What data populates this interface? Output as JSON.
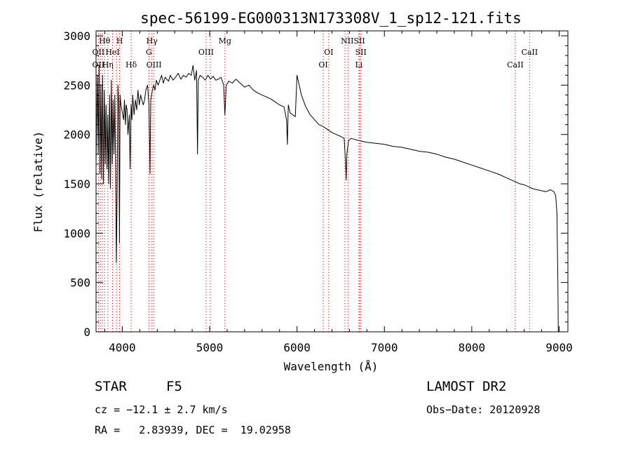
{
  "chart_data": {
    "type": "line",
    "title": "spec-56199-EG000313N173308V_1_sp12-121.fits",
    "xlabel": "Wavelength (Å)",
    "ylabel": "Flux (relative)",
    "xlim": [
      3700,
      9100
    ],
    "ylim": [
      0,
      3050
    ],
    "xticks": [
      4000,
      5000,
      6000,
      7000,
      8000,
      9000
    ],
    "yticks": [
      0,
      500,
      1000,
      1500,
      2000,
      2500,
      3000
    ],
    "grid": false,
    "line_color": "#000000",
    "marker_color": "#cc0000",
    "series": [
      {
        "x": [
          3700,
          3715,
          3725,
          3735,
          3745,
          3755,
          3765,
          3775,
          3785,
          3795,
          3805,
          3815,
          3825,
          3835,
          3845,
          3855,
          3865,
          3875,
          3885,
          3895,
          3905,
          3915,
          3925,
          3933,
          3940,
          3950,
          3960,
          3968,
          3975,
          3985,
          3995,
          4005,
          4015,
          4025,
          4035,
          4045,
          4055,
          4065,
          4080,
          4090,
          4101,
          4110,
          4120,
          4135,
          4150,
          4165,
          4180,
          4195,
          4210,
          4225,
          4240,
          4255,
          4270,
          4290,
          4305,
          4318,
          4325,
          4335,
          4345,
          4360,
          4375,
          4390,
          4410,
          4430,
          4450,
          4470,
          4490,
          4510,
          4530,
          4550,
          4580,
          4610,
          4640,
          4670,
          4700,
          4730,
          4760,
          4790,
          4810,
          4830,
          4850,
          4861,
          4870,
          4890,
          4920,
          4950,
          4980,
          5010,
          5040,
          5070,
          5100,
          5130,
          5160,
          5175,
          5190,
          5220,
          5260,
          5300,
          5350,
          5400,
          5450,
          5500,
          5550,
          5600,
          5650,
          5700,
          5750,
          5800,
          5850,
          5880,
          5890,
          5900,
          5920,
          5950,
          5980,
          6000,
          6050,
          6100,
          6150,
          6200,
          6250,
          6300,
          6350,
          6400,
          6450,
          6500,
          6540,
          6555,
          6563,
          6570,
          6590,
          6620,
          6660,
          6700,
          6750,
          6800,
          6900,
          7000,
          7100,
          7200,
          7300,
          7400,
          7500,
          7600,
          7700,
          7800,
          7900,
          8000,
          8100,
          8200,
          8300,
          8400,
          8450,
          8500,
          8550,
          8600,
          8650,
          8700,
          8750,
          8800,
          8850,
          8900,
          8940,
          8960,
          8975,
          8985,
          8990
        ],
        "y": [
          1700,
          2600,
          1800,
          2700,
          1600,
          2500,
          1550,
          2600,
          1500,
          2450,
          1700,
          2300,
          1650,
          2200,
          1500,
          2400,
          1450,
          2550,
          1700,
          2350,
          1800,
          2400,
          1600,
          700,
          1300,
          2500,
          2300,
          900,
          2400,
          2300,
          2250,
          2200,
          2150,
          2350,
          2100,
          2300,
          2250,
          2000,
          2200,
          1650,
          2300,
          2150,
          2400,
          2200,
          2350,
          2250,
          2450,
          2300,
          2400,
          2350,
          2300,
          2350,
          2450,
          2500,
          2300,
          1600,
          2350,
          2400,
          2450,
          2500,
          2450,
          2550,
          2500,
          2550,
          2600,
          2520,
          2580,
          2560,
          2540,
          2600,
          2550,
          2580,
          2620,
          2560,
          2600,
          2580,
          2620,
          2600,
          2700,
          2550,
          2650,
          1800,
          2550,
          2600,
          2580,
          2550,
          2600,
          2560,
          2590,
          2550,
          2560,
          2580,
          2500,
          2200,
          2500,
          2540,
          2520,
          2560,
          2520,
          2480,
          2500,
          2450,
          2420,
          2400,
          2380,
          2360,
          2330,
          2300,
          2280,
          2150,
          1900,
          2300,
          2220,
          2200,
          2180,
          2600,
          2400,
          2280,
          2200,
          2150,
          2100,
          2080,
          2050,
          2020,
          2000,
          1980,
          1960,
          1720,
          1540,
          1800,
          1940,
          1960,
          1950,
          1940,
          1930,
          1920,
          1910,
          1900,
          1880,
          1870,
          1850,
          1830,
          1820,
          1800,
          1770,
          1750,
          1720,
          1690,
          1660,
          1630,
          1600,
          1560,
          1540,
          1520,
          1500,
          1490,
          1470,
          1450,
          1440,
          1430,
          1420,
          1440,
          1420,
          1380,
          1200,
          500,
          0
        ]
      }
    ],
    "lines": [
      {
        "label": "Hθ",
        "wavelength": 3798,
        "row": 0,
        "side": "top"
      },
      {
        "label": "H",
        "wavelength": 3970,
        "row": 0,
        "side": "top"
      },
      {
        "label": "Hγ",
        "wavelength": 4340,
        "row": 0,
        "side": "top"
      },
      {
        "label": "Mg",
        "wavelength": 5175,
        "row": 0,
        "side": "top"
      },
      {
        "label": "NIISII",
        "wavelength": 6640,
        "row": 0,
        "side": "top"
      },
      {
        "label": "OII",
        "wavelength": 3727,
        "row": 1,
        "side": "top"
      },
      {
        "label": "HeI",
        "wavelength": 3889,
        "row": 1,
        "side": "top"
      },
      {
        "label": "G",
        "wavelength": 4305,
        "row": 1,
        "side": "top"
      },
      {
        "label": "OIII",
        "wavelength": 4959,
        "row": 1,
        "side": "top"
      },
      {
        "label": "OI",
        "wavelength": 6363,
        "row": 1,
        "side": "top"
      },
      {
        "label": "SII",
        "wavelength": 6731,
        "row": 1,
        "side": "top"
      },
      {
        "label": "CaII",
        "wavelength": 8662,
        "row": 1,
        "side": "top"
      },
      {
        "label": "OII",
        "wavelength": 3727,
        "row": 2,
        "side": "bottom"
      },
      {
        "label": "Hη",
        "wavelength": 3835,
        "row": 2,
        "side": "bottom"
      },
      {
        "label": "Hδ",
        "wavelength": 4102,
        "row": 2,
        "side": "bottom"
      },
      {
        "label": "OIII",
        "wavelength": 4363,
        "row": 2,
        "side": "bottom"
      },
      {
        "label": "OI",
        "wavelength": 6300,
        "row": 2,
        "side": "bottom"
      },
      {
        "label": "Li",
        "wavelength": 6708,
        "row": 2,
        "side": "bottom"
      },
      {
        "label": "CaII",
        "wavelength": 8498,
        "row": 2,
        "side": "bottom"
      }
    ],
    "marker_lines": [
      3727,
      3750,
      3771,
      3798,
      3835,
      3889,
      3934,
      3970,
      4102,
      4305,
      4340,
      4363,
      4959,
      5007,
      5175,
      6300,
      6363,
      6548,
      6583,
      6708,
      6716,
      6731,
      8498,
      8662
    ]
  },
  "info": {
    "class_label": "STAR",
    "subclass_label": "F5",
    "survey": "LAMOST DR2",
    "cz": "cz = −12.1 ± 2.7 km/s",
    "obs_date": "Obs−Date: 20120928",
    "coords": "RA =   2.83939, DEC =  19.02958"
  }
}
